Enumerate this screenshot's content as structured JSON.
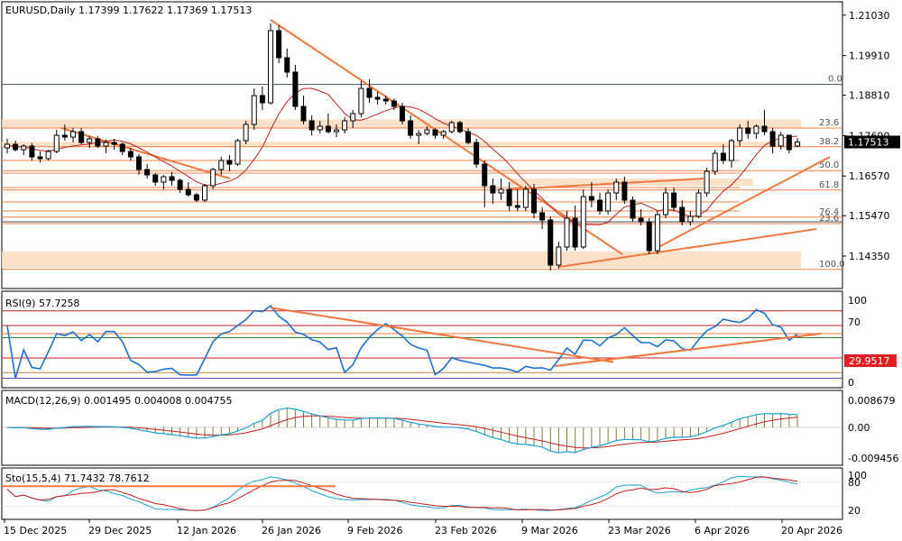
{
  "chart_data": {
    "type": "candlestick",
    "symbol_header": "EURUSD,Daily  1.17399 1.17622 1.17369 1.17513",
    "price_axis": {
      "ticks": [
        "1.21030",
        "1.19910",
        "1.18810",
        "1.17690",
        "1.16570",
        "1.15470",
        "1.14350"
      ],
      "tick_values": [
        1.2103,
        1.1991,
        1.1881,
        1.1769,
        1.1657,
        1.1547,
        1.1435
      ],
      "current_price": "1.17513",
      "range": [
        1.136,
        1.2125
      ]
    },
    "date_labels": [
      "15 Dec 2025",
      "29 Dec 2025",
      "12 Jan 2026",
      "26 Jan 2026",
      "9 Feb 2026",
      "23 Feb 2026",
      "9 Mar 2026",
      "23 Mar 2026",
      "6 Apr 2026",
      "20 Apr 2026"
    ],
    "fib_levels": [
      {
        "label": "0.0",
        "price": 1.1911
      },
      {
        "label": "23.6",
        "price": 1.179
      },
      {
        "label": "38.2",
        "price": 1.1738
      },
      {
        "label": "50.0",
        "price": 1.1672
      },
      {
        "label": "61.8",
        "price": 1.1618
      },
      {
        "label": "76.4",
        "price": 1.1543
      },
      {
        "label": "23.6",
        "price": 1.1525
      },
      {
        "label": "100.0",
        "price": 1.1398
      }
    ],
    "candles": [
      [
        1.1735,
        1.176,
        1.172,
        1.1745
      ],
      [
        1.1745,
        1.1755,
        1.1725,
        1.173
      ],
      [
        1.173,
        1.1745,
        1.1715,
        1.174
      ],
      [
        1.174,
        1.1748,
        1.17,
        1.171
      ],
      [
        1.171,
        1.1725,
        1.1695,
        1.1705
      ],
      [
        1.1705,
        1.173,
        1.17,
        1.1725
      ],
      [
        1.1725,
        1.1785,
        1.172,
        1.177
      ],
      [
        1.177,
        1.18,
        1.1755,
        1.1765
      ],
      [
        1.1765,
        1.179,
        1.175,
        1.178
      ],
      [
        1.178,
        1.179,
        1.1745,
        1.175
      ],
      [
        1.175,
        1.1768,
        1.1735,
        1.176
      ],
      [
        1.176,
        1.1768,
        1.1735,
        1.174
      ],
      [
        1.174,
        1.1758,
        1.172,
        1.175
      ],
      [
        1.175,
        1.176,
        1.173,
        1.1745
      ],
      [
        1.1745,
        1.175,
        1.1715,
        1.1725
      ],
      [
        1.1725,
        1.1735,
        1.17,
        1.171
      ],
      [
        1.171,
        1.1718,
        1.166,
        1.1675
      ],
      [
        1.1675,
        1.169,
        1.165,
        1.166
      ],
      [
        1.166,
        1.1665,
        1.163,
        1.164
      ],
      [
        1.164,
        1.166,
        1.162,
        1.1655
      ],
      [
        1.1655,
        1.1668,
        1.163,
        1.1645
      ],
      [
        1.1645,
        1.165,
        1.161,
        1.162
      ],
      [
        1.162,
        1.164,
        1.16,
        1.1605
      ],
      [
        1.1605,
        1.161,
        1.1585,
        1.159
      ],
      [
        1.159,
        1.1635,
        1.1585,
        1.163
      ],
      [
        1.163,
        1.168,
        1.162,
        1.1675
      ],
      [
        1.1675,
        1.171,
        1.166,
        1.17
      ],
      [
        1.17,
        1.1715,
        1.167,
        1.169
      ],
      [
        1.169,
        1.176,
        1.1685,
        1.1755
      ],
      [
        1.1755,
        1.181,
        1.1745,
        1.18
      ],
      [
        1.18,
        1.19,
        1.1785,
        1.188
      ],
      [
        1.188,
        1.1905,
        1.184,
        1.186
      ],
      [
        1.186,
        1.208,
        1.1855,
        1.206
      ],
      [
        1.206,
        1.2075,
        1.197,
        1.1985
      ],
      [
        1.1985,
        1.201,
        1.193,
        1.1945
      ],
      [
        1.1945,
        1.1965,
        1.184,
        1.185
      ],
      [
        1.185,
        1.188,
        1.18,
        1.181
      ],
      [
        1.181,
        1.1825,
        1.177,
        1.1785
      ],
      [
        1.1785,
        1.181,
        1.1775,
        1.1795
      ],
      [
        1.1795,
        1.183,
        1.1775,
        1.178
      ],
      [
        1.178,
        1.18,
        1.1765,
        1.1785
      ],
      [
        1.1785,
        1.182,
        1.1775,
        1.181
      ],
      [
        1.181,
        1.184,
        1.179,
        1.183
      ],
      [
        1.183,
        1.192,
        1.182,
        1.19
      ],
      [
        1.19,
        1.1925,
        1.186,
        1.1875
      ],
      [
        1.1875,
        1.189,
        1.1855,
        1.187
      ],
      [
        1.187,
        1.188,
        1.1855,
        1.1865
      ],
      [
        1.1865,
        1.1872,
        1.184,
        1.185
      ],
      [
        1.185,
        1.186,
        1.18,
        1.181
      ],
      [
        1.181,
        1.1825,
        1.176,
        1.177
      ],
      [
        1.177,
        1.1785,
        1.1745,
        1.1775
      ],
      [
        1.1775,
        1.1795,
        1.177,
        1.1785
      ],
      [
        1.1785,
        1.179,
        1.176,
        1.177
      ],
      [
        1.177,
        1.1785,
        1.176,
        1.178
      ],
      [
        1.178,
        1.181,
        1.1775,
        1.1805
      ],
      [
        1.1805,
        1.181,
        1.1775,
        1.178
      ],
      [
        1.178,
        1.179,
        1.1745,
        1.175
      ],
      [
        1.175,
        1.176,
        1.168,
        1.169
      ],
      [
        1.169,
        1.17,
        1.157,
        1.163
      ],
      [
        1.163,
        1.165,
        1.158,
        1.161
      ],
      [
        1.161,
        1.165,
        1.159,
        1.162
      ],
      [
        1.162,
        1.164,
        1.156,
        1.1575
      ],
      [
        1.1575,
        1.162,
        1.156,
        1.157
      ],
      [
        1.157,
        1.163,
        1.156,
        1.162
      ],
      [
        1.162,
        1.1635,
        1.154,
        1.1555
      ],
      [
        1.1555,
        1.157,
        1.151,
        1.1535
      ],
      [
        1.1535,
        1.1545,
        1.1395,
        1.141
      ],
      [
        1.141,
        1.1475,
        1.14,
        1.146
      ],
      [
        1.146,
        1.156,
        1.145,
        1.154
      ],
      [
        1.154,
        1.1575,
        1.145,
        1.146
      ],
      [
        1.146,
        1.162,
        1.1455,
        1.16
      ],
      [
        1.16,
        1.164,
        1.157,
        1.159
      ],
      [
        1.159,
        1.161,
        1.155,
        1.156
      ],
      [
        1.156,
        1.162,
        1.155,
        1.161
      ],
      [
        1.161,
        1.165,
        1.159,
        1.164
      ],
      [
        1.164,
        1.1655,
        1.158,
        1.159
      ],
      [
        1.159,
        1.16,
        1.153,
        1.154
      ],
      [
        1.154,
        1.1565,
        1.152,
        1.153
      ],
      [
        1.153,
        1.154,
        1.144,
        1.145
      ],
      [
        1.145,
        1.156,
        1.144,
        1.155
      ],
      [
        1.155,
        1.1625,
        1.154,
        1.161
      ],
      [
        1.161,
        1.1625,
        1.156,
        1.157
      ],
      [
        1.157,
        1.159,
        1.152,
        1.153
      ],
      [
        1.153,
        1.156,
        1.152,
        1.1545
      ],
      [
        1.1545,
        1.162,
        1.154,
        1.161
      ],
      [
        1.161,
        1.168,
        1.16,
        1.167
      ],
      [
        1.167,
        1.173,
        1.166,
        1.172
      ],
      [
        1.172,
        1.1745,
        1.169,
        1.17
      ],
      [
        1.17,
        1.176,
        1.168,
        1.1755
      ],
      [
        1.1755,
        1.18,
        1.174,
        1.179
      ],
      [
        1.179,
        1.181,
        1.176,
        1.1775
      ],
      [
        1.1775,
        1.18,
        1.176,
        1.1795
      ],
      [
        1.1795,
        1.184,
        1.177,
        1.178
      ],
      [
        1.178,
        1.179,
        1.172,
        1.174
      ],
      [
        1.174,
        1.178,
        1.173,
        1.177
      ],
      [
        1.177,
        1.1772,
        1.172,
        1.173
      ],
      [
        1.174,
        1.1762,
        1.1737,
        1.1751
      ]
    ],
    "rsi": {
      "label": "RSI(9) 57.7258",
      "levels": [
        "100",
        "70",
        "30",
        "0"
      ],
      "marker": "29.9517"
    },
    "macd": {
      "label": "MACD(12,26,9) 0.001495 0.004008 0.004755",
      "ticks": [
        "0.008679",
        "0.00",
        "-0.009456"
      ]
    },
    "stochastic": {
      "label": "Sto(15,5,4) 71.7432 78.7612",
      "ticks": [
        "100",
        "80",
        "20"
      ]
    }
  }
}
